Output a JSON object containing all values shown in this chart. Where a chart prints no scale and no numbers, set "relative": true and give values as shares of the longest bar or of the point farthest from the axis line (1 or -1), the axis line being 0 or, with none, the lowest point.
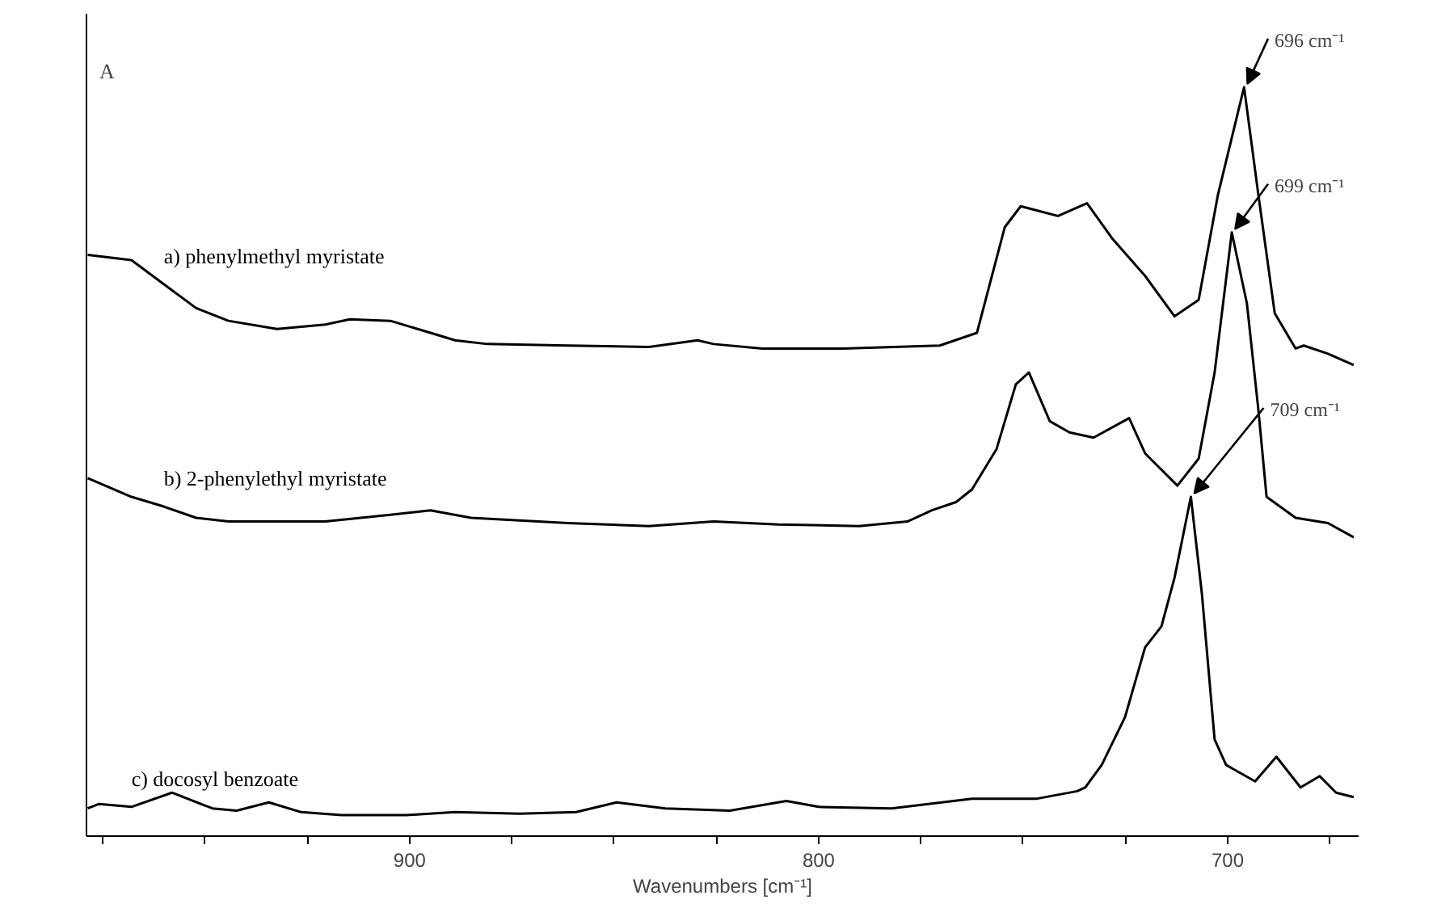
{
  "chart_data": {
    "type": "line",
    "relative": true,
    "ylabel": "A",
    "xlabel": "Wavenumbers [cm⁻¹]",
    "xlim": [
      979,
      668
    ],
    "xticks": [
      {
        "value": 975,
        "label": null
      },
      {
        "value": 950,
        "label": null
      },
      {
        "value": 925,
        "label": null
      },
      900,
      {
        "value": 875,
        "label": null
      },
      {
        "value": 850,
        "label": null
      },
      {
        "value": 825,
        "label": null
      },
      800,
      {
        "value": 775,
        "label": null
      },
      {
        "value": 750,
        "label": null
      },
      {
        "value": 725,
        "label": null
      },
      700,
      {
        "value": 675,
        "label": null
      }
    ],
    "grid": false,
    "marker": "none",
    "line_style": "solid",
    "series": [
      {
        "name": "a) phenylmethyl myristate",
        "color": "#000000",
        "x": [
          978.7,
          968.0,
          960.1,
          952.2,
          944.3,
          932.4,
          920.6,
          914.6,
          904.7,
          894.9,
          888.9,
          881.0,
          861.3,
          841.5,
          829.6,
          825.7,
          813.8,
          794.1,
          770.4,
          761.3,
          754.5,
          750.6,
          741.5,
          734.4,
          728.1,
          720.2,
          713.0,
          707.1,
          702.4,
          696,
          692.5,
          688.5,
          683.4,
          681.4,
          675.5,
          669.2
        ],
        "values": [
          0.776,
          0.769,
          0.737,
          0.705,
          0.688,
          0.677,
          0.683,
          0.69,
          0.688,
          0.672,
          0.662,
          0.657,
          0.655,
          0.653,
          0.662,
          0.657,
          0.651,
          0.651,
          0.655,
          0.672,
          0.813,
          0.841,
          0.828,
          0.845,
          0.797,
          0.748,
          0.694,
          0.716,
          0.856,
          1.0,
          0.856,
          0.698,
          0.651,
          0.655,
          0.644,
          0.629
        ]
      },
      {
        "name": "b) 2-phenylethyl myristate",
        "color": "#000000",
        "x": [
          978.7,
          968.0,
          960.1,
          952.2,
          944.3,
          920.6,
          904.7,
          894.9,
          885.0,
          861.3,
          841.5,
          825.7,
          809.9,
          790.1,
          778.3,
          772.3,
          766.4,
          762.5,
          756.5,
          751.8,
          748.6,
          743.5,
          738.7,
          732.8,
          724.1,
          720.2,
          712.3,
          707.1,
          703.2,
          699,
          695.3,
          692.5,
          690.5,
          683.4,
          675.5,
          669.2
        ],
        "values": [
          0.478,
          0.453,
          0.44,
          0.425,
          0.42,
          0.42,
          0.429,
          0.435,
          0.425,
          0.418,
          0.414,
          0.42,
          0.416,
          0.414,
          0.42,
          0.435,
          0.446,
          0.463,
          0.517,
          0.603,
          0.619,
          0.554,
          0.539,
          0.532,
          0.558,
          0.511,
          0.468,
          0.504,
          0.619,
          0.806,
          0.711,
          0.569,
          0.453,
          0.425,
          0.418,
          0.399
        ]
      },
      {
        "name": "c) docosyl benzoate",
        "color": "#000000",
        "x": [
          978.7,
          975.9,
          968.0,
          958.1,
          948.2,
          942.3,
          934.4,
          926.5,
          916.6,
          900.8,
          888.9,
          873.1,
          859.3,
          849.4,
          837.5,
          821.7,
          807.9,
          800.0,
          782.2,
          762.5,
          746.6,
          736.8,
          734.8,
          730.8,
          725.1,
          720.2,
          716.2,
          713.0,
          709,
          706.3,
          703.2,
          700.4,
          693.3,
          688.1,
          682.2,
          677.5,
          673.5,
          669.2
        ],
        "values": [
          0.037,
          0.043,
          0.039,
          0.058,
          0.037,
          0.034,
          0.045,
          0.032,
          0.028,
          0.028,
          0.032,
          0.03,
          0.032,
          0.045,
          0.037,
          0.034,
          0.047,
          0.039,
          0.037,
          0.05,
          0.05,
          0.06,
          0.065,
          0.095,
          0.159,
          0.252,
          0.28,
          0.345,
          0.453,
          0.323,
          0.129,
          0.095,
          0.073,
          0.106,
          0.065,
          0.08,
          0.058,
          0.052
        ]
      }
    ],
    "annotations": [
      {
        "text": "696 cm⁻¹",
        "x": 696,
        "y": 1.0
      },
      {
        "text": "699 cm⁻¹",
        "x": 699,
        "y": 0.806
      },
      {
        "text": "709 cm⁻¹",
        "x": 709,
        "y": 0.453
      }
    ]
  }
}
